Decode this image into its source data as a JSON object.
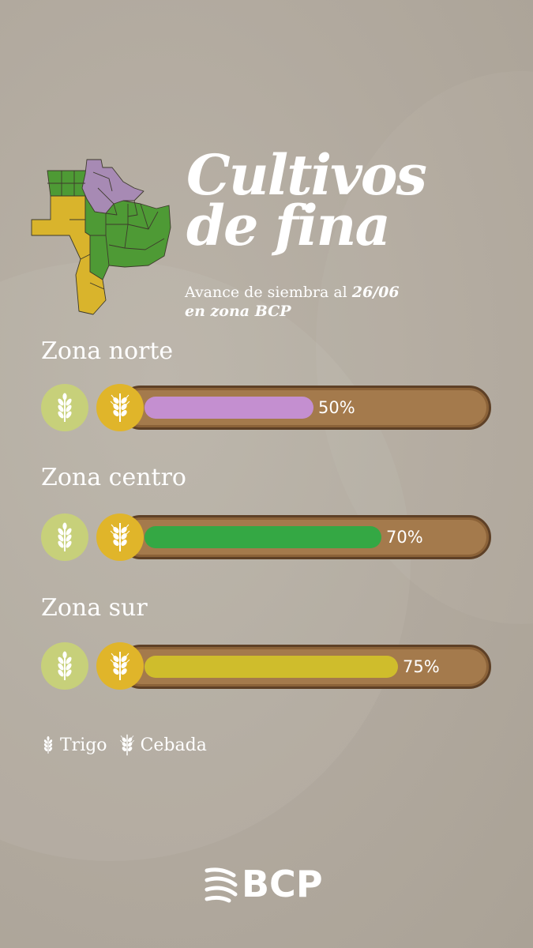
{
  "title": {
    "line1": "Cultivos",
    "line2": "de fina"
  },
  "subtitle": {
    "prefix": "Avance de siembra al ",
    "date": "26/06",
    "line2": "en zona BCP"
  },
  "colors": {
    "background": "#b3aba0",
    "track": "#a47a4c",
    "trigo_circle": "#c7d07a",
    "cebada_circle": "#e0b52a",
    "map_north": "#a78ab4",
    "map_center": "#4e9a35",
    "map_south": "#d9b42c"
  },
  "chart_data": {
    "type": "bar",
    "categories": [
      "Zona norte",
      "Zona centro",
      "Zona sur"
    ],
    "values": [
      50,
      70,
      75
    ],
    "labels": [
      "50%",
      "70%",
      "75%"
    ],
    "colors": [
      "#c48fd0",
      "#34a844",
      "#cfbd2c"
    ],
    "ylim": [
      0,
      100
    ]
  },
  "legend": [
    {
      "label": "Trigo",
      "icon": "wheat-icon"
    },
    {
      "label": "Cebada",
      "icon": "barley-icon"
    }
  ],
  "brand": {
    "name": "BCP",
    "icon": "bcp-logo-icon"
  }
}
